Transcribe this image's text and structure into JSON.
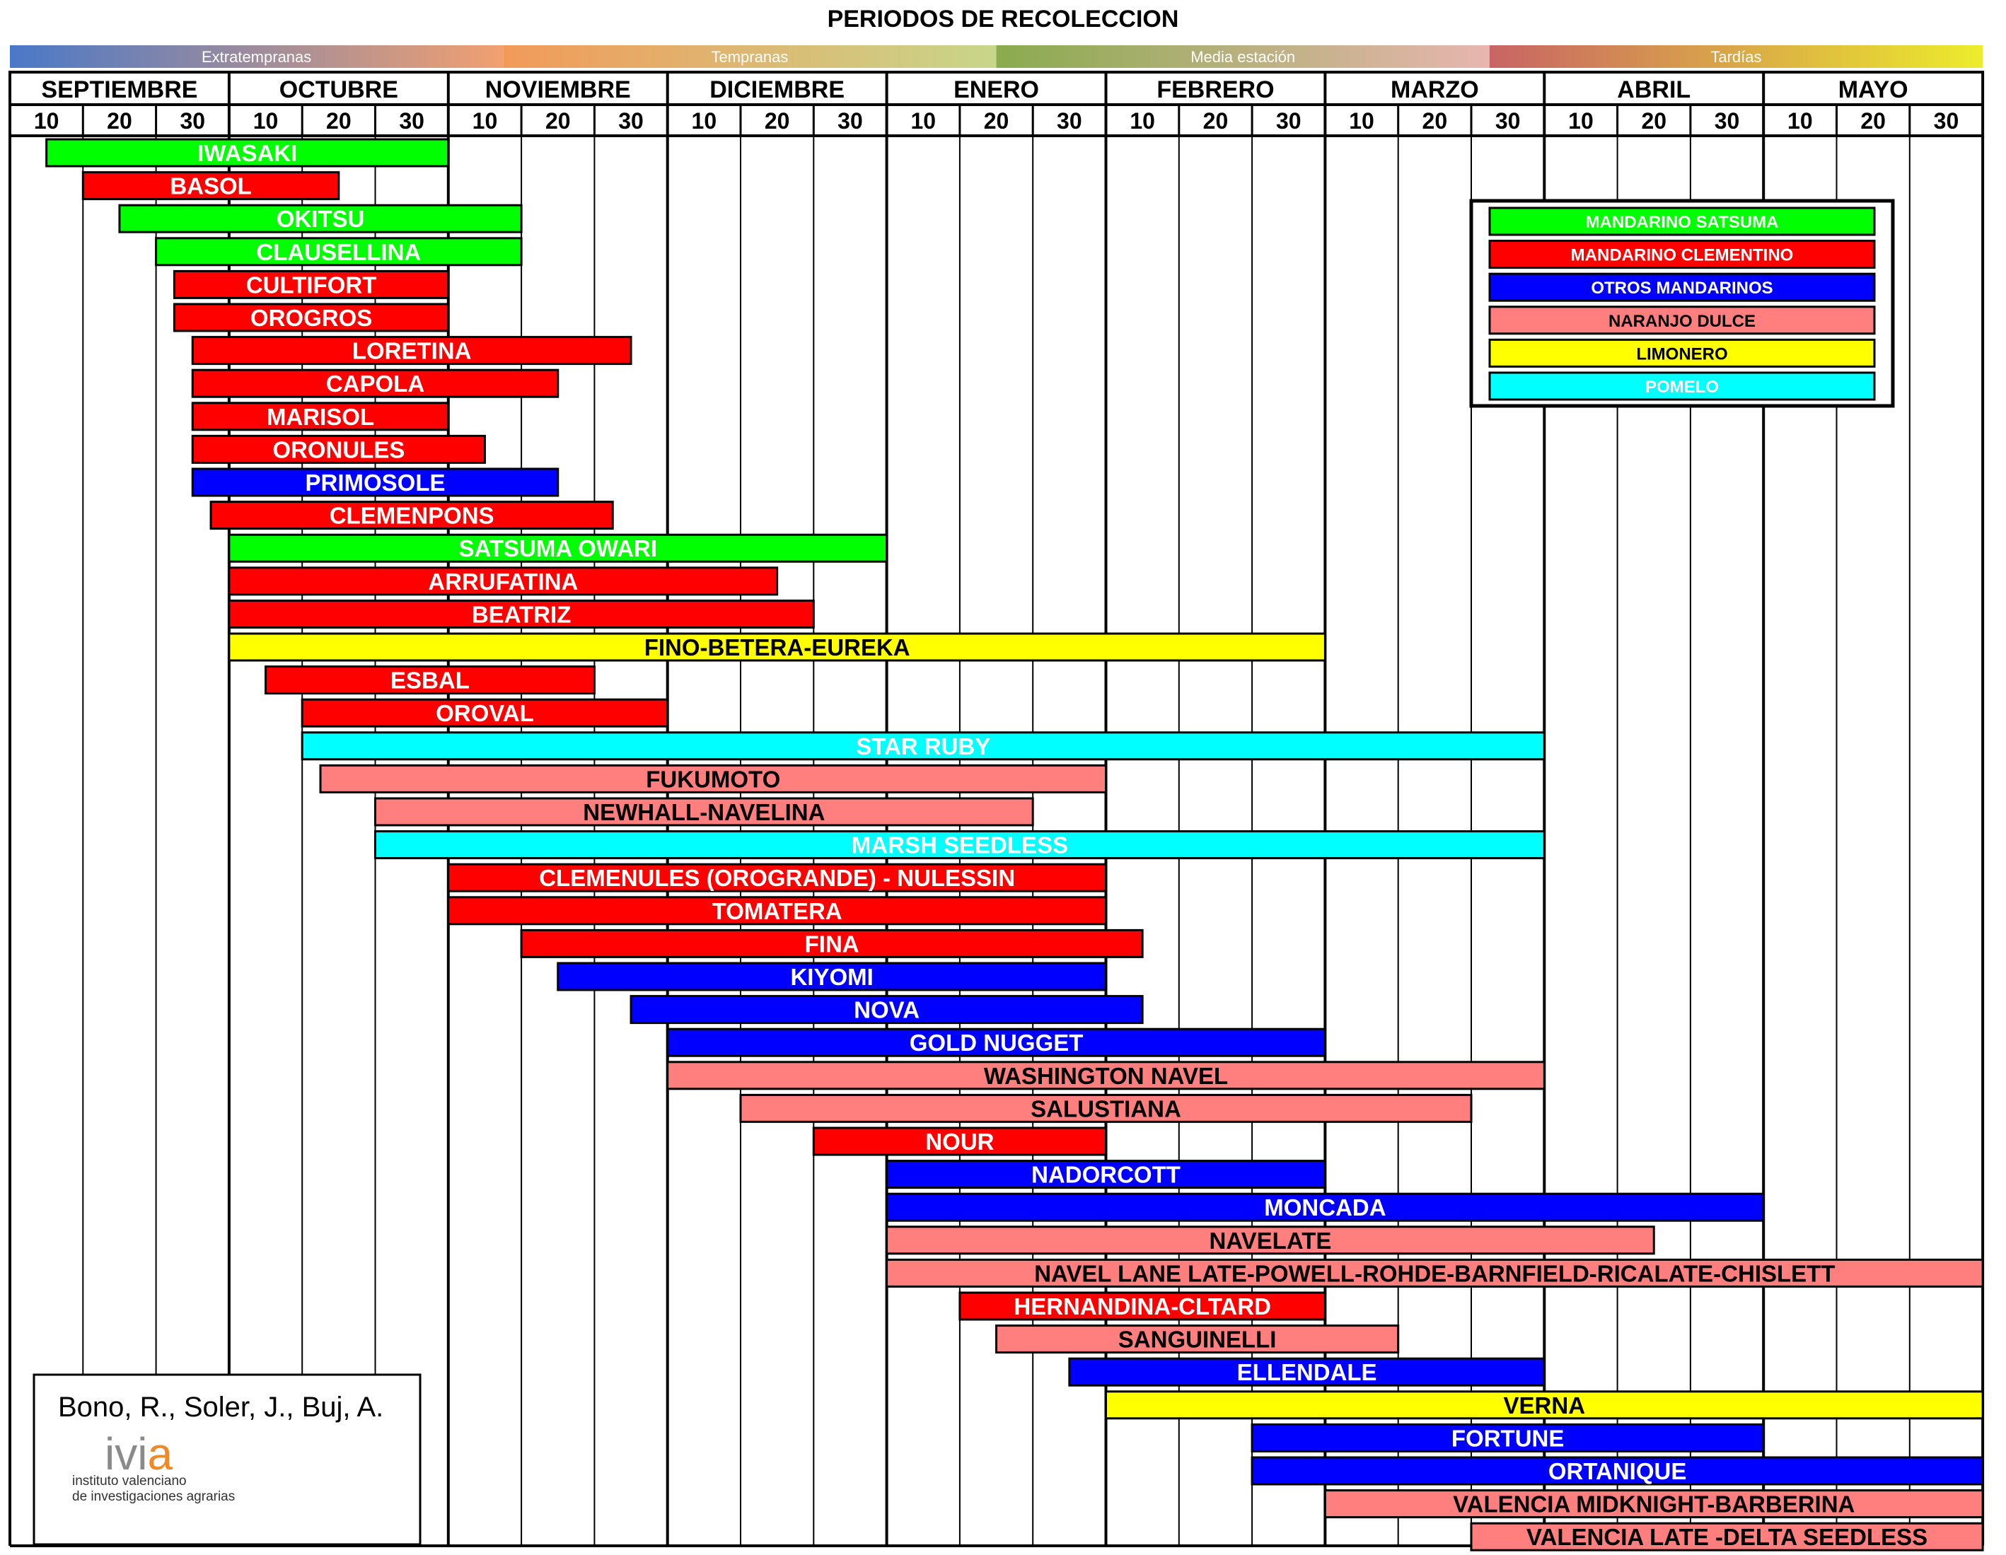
{
  "title": "PERIODOS DE RECOLECCION",
  "seasons": [
    {
      "label": "Extratempranas",
      "from": "#4a78c8",
      "to": "#f2a070"
    },
    {
      "label": "Tempranas",
      "from": "#f29a5a",
      "to": "#c8d68a"
    },
    {
      "label": "Media estación",
      "from": "#8aab4e",
      "to": "#e8b6b0"
    },
    {
      "label": "Tardías",
      "from": "#c86464",
      "to": "#ecec2c"
    }
  ],
  "months": [
    "SEPTIEMBRE",
    "OCTUBRE",
    "NOVIEMBRE",
    "DICIEMBRE",
    "ENERO",
    "FEBRERO",
    "MARZO",
    "ABRIL",
    "MAYO"
  ],
  "days": [
    "10",
    "20",
    "30"
  ],
  "colors": {
    "satsuma": "#00ff00",
    "clementino": "#ff0000",
    "otros": "#0000ff",
    "naranjo": "#ff7f7f",
    "limonero": "#ffff00",
    "pomelo": "#00ffff"
  },
  "legend": [
    {
      "label": "MANDARINO SATSUMA",
      "group": "satsuma",
      "text_color": "#ffffff"
    },
    {
      "label": "MANDARINO CLEMENTINO",
      "group": "clementino",
      "text_color": "#ffffff"
    },
    {
      "label": "OTROS MANDARINOS",
      "group": "otros",
      "text_color": "#ffffff"
    },
    {
      "label": "NARANJO DULCE",
      "group": "naranjo",
      "text_color": "#000000"
    },
    {
      "label": "LIMONERO",
      "group": "limonero",
      "text_color": "#000000"
    },
    {
      "label": "POMELO",
      "group": "pomelo",
      "text_color": "#ffffff"
    }
  ],
  "chart_data": {
    "type": "gantt",
    "title": "PERIODOS DE RECOLECCION",
    "x_unit": "ten-day period (0 = 1 Sep, 27 = 31 May)",
    "varieties": [
      {
        "name": "IWASAKI",
        "group": "satsuma",
        "start": 0.5,
        "end": 6.0
      },
      {
        "name": "BASOL",
        "group": "clementino",
        "start": 1.0,
        "end": 4.5
      },
      {
        "name": "OKITSU",
        "group": "satsuma",
        "start": 1.5,
        "end": 7.0
      },
      {
        "name": "CLAUSELLINA",
        "group": "satsuma",
        "start": 2.0,
        "end": 7.0
      },
      {
        "name": "CULTIFORT",
        "group": "clementino",
        "start": 2.25,
        "end": 6.0
      },
      {
        "name": "OROGROS",
        "group": "clementino",
        "start": 2.25,
        "end": 6.0
      },
      {
        "name": "LORETINA",
        "group": "clementino",
        "start": 2.5,
        "end": 8.5
      },
      {
        "name": "CAPOLA",
        "group": "clementino",
        "start": 2.5,
        "end": 7.5
      },
      {
        "name": "MARISOL",
        "group": "clementino",
        "start": 2.5,
        "end": 6.0
      },
      {
        "name": "ORONULES",
        "group": "clementino",
        "start": 2.5,
        "end": 6.5
      },
      {
        "name": "PRIMOSOLE",
        "group": "otros",
        "start": 2.5,
        "end": 7.5
      },
      {
        "name": "CLEMENPONS",
        "group": "clementino",
        "start": 2.75,
        "end": 8.25
      },
      {
        "name": "SATSUMA OWARI",
        "group": "satsuma",
        "start": 3.0,
        "end": 12.0
      },
      {
        "name": "ARRUFATINA",
        "group": "clementino",
        "start": 3.0,
        "end": 10.5
      },
      {
        "name": "BEATRIZ",
        "group": "clementino",
        "start": 3.0,
        "end": 11.0
      },
      {
        "name": "FINO-BETERA-EUREKA",
        "group": "limonero",
        "start": 3.0,
        "end": 18.0
      },
      {
        "name": "ESBAL",
        "group": "clementino",
        "start": 3.5,
        "end": 8.0
      },
      {
        "name": "OROVAL",
        "group": "clementino",
        "start": 4.0,
        "end": 9.0
      },
      {
        "name": "STAR RUBY",
        "group": "pomelo",
        "start": 4.0,
        "end": 21.0
      },
      {
        "name": "FUKUMOTO",
        "group": "naranjo",
        "start": 4.25,
        "end": 15.0
      },
      {
        "name": "NEWHALL-NAVELINA",
        "group": "naranjo",
        "start": 5.0,
        "end": 14.0
      },
      {
        "name": "MARSH SEEDLESS",
        "group": "pomelo",
        "start": 5.0,
        "end": 21.0
      },
      {
        "name": "CLEMENULES  (OROGRANDE) - NULESSIN",
        "group": "clementino",
        "start": 6.0,
        "end": 15.0
      },
      {
        "name": "TOMATERA",
        "group": "clementino",
        "start": 6.0,
        "end": 15.0
      },
      {
        "name": "FINA",
        "group": "clementino",
        "start": 7.0,
        "end": 15.5
      },
      {
        "name": "KIYOMI",
        "group": "otros",
        "start": 7.5,
        "end": 15.0
      },
      {
        "name": "NOVA",
        "group": "otros",
        "start": 8.5,
        "end": 15.5
      },
      {
        "name": "GOLD NUGGET",
        "group": "otros",
        "start": 9.0,
        "end": 18.0
      },
      {
        "name": "WASHINGTON NAVEL",
        "group": "naranjo",
        "start": 9.0,
        "end": 21.0
      },
      {
        "name": "SALUSTIANA",
        "group": "naranjo",
        "start": 10.0,
        "end": 20.0
      },
      {
        "name": "NOUR",
        "group": "clementino",
        "start": 11.0,
        "end": 15.0
      },
      {
        "name": "NADORCOTT",
        "group": "otros",
        "start": 12.0,
        "end": 18.0
      },
      {
        "name": "MONCADA",
        "group": "otros",
        "start": 12.0,
        "end": 24.0
      },
      {
        "name": "NAVELATE",
        "group": "naranjo",
        "start": 12.0,
        "end": 22.5
      },
      {
        "name": "NAVEL LANE LATE-POWELL-ROHDE-BARNFIELD-RICALATE-CHISLETT",
        "group": "naranjo",
        "start": 12.0,
        "end": 27.0
      },
      {
        "name": "HERNANDINA-CLTARD",
        "group": "clementino",
        "start": 13.0,
        "end": 18.0
      },
      {
        "name": "SANGUINELLI",
        "group": "naranjo",
        "start": 13.5,
        "end": 19.0
      },
      {
        "name": "ELLENDALE",
        "group": "otros",
        "start": 14.5,
        "end": 21.0
      },
      {
        "name": "VERNA",
        "group": "limonero",
        "start": 15.0,
        "end": 27.0
      },
      {
        "name": "FORTUNE",
        "group": "otros",
        "start": 17.0,
        "end": 24.0
      },
      {
        "name": "ORTANIQUE",
        "group": "otros",
        "start": 17.0,
        "end": 27.0
      },
      {
        "name": "VALENCIA MIDKNIGHT-BARBERINA",
        "group": "naranjo",
        "start": 18.0,
        "end": 27.0
      },
      {
        "name": "VALENCIA LATE -DELTA SEEDLESS",
        "group": "naranjo",
        "start": 20.0,
        "end": 27.0
      }
    ]
  },
  "credit": {
    "authors": "Bono, R., Soler, J., Buj, A.",
    "logo_text": "ivia",
    "logo_line1": "instituto valenciano",
    "logo_line2": "de investigaciones agrarias"
  }
}
